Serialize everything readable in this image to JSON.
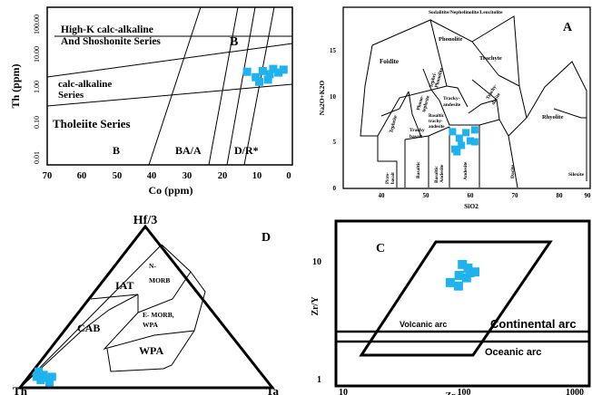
{
  "colors": {
    "sample": "#1fb2ee"
  },
  "chart_data": [
    {
      "panel_letter": "B",
      "type": "scatter",
      "xlabel": "Co (ppm)",
      "ylabel": "Th (ppm)",
      "xlim": [
        70,
        0
      ],
      "ylim": [
        0.01,
        100
      ],
      "yscale": "log",
      "x_ticks": [
        "70",
        "60",
        "50",
        "40",
        "30",
        "20",
        "10",
        "0"
      ],
      "y_ticks": [
        "0.01",
        "0.10",
        "1.00",
        "10.00",
        "100.00"
      ],
      "fields": [
        {
          "lines": [
            "High-K calc-alkaline",
            "And Shoshonite Series"
          ]
        },
        {
          "lines": [
            "calc-alkaline",
            "Series"
          ]
        },
        {
          "lines": [
            "Tholeiite Series"
          ]
        },
        {
          "lines": [
            "B"
          ]
        },
        {
          "lines": [
            "BA/A"
          ]
        },
        {
          "lines": [
            "D/R*"
          ]
        }
      ],
      "series": [
        {
          "points": [
            {
              "x": 12.5,
              "y": 3.8
            },
            {
              "x": 10,
              "y": 2.6
            },
            {
              "x": 8,
              "y": 4.0
            },
            {
              "x": 6,
              "y": 3.2
            },
            {
              "x": 5,
              "y": 4.6
            },
            {
              "x": 3.5,
              "y": 3.6
            },
            {
              "x": 2,
              "y": 4.4
            },
            {
              "x": 9,
              "y": 1.9
            },
            {
              "x": 6.5,
              "y": 2.2
            }
          ]
        }
      ]
    },
    {
      "panel_letter": "A",
      "type": "scatter",
      "xlabel": "SiO2",
      "ylabel": "Na2O+K2O",
      "xlim": [
        35,
        90
      ],
      "ylim": [
        0,
        20
      ],
      "x_ticks": [
        "40",
        "50",
        "60",
        "70",
        "80",
        "90"
      ],
      "y_ticks": [
        "0",
        "5",
        "10",
        "15"
      ],
      "fields": [
        {
          "lines": [
            "Sodalitite/Nephelinolite/Leucitolite"
          ]
        },
        {
          "lines": [
            "Foidite"
          ]
        },
        {
          "lines": [
            "Phonolite"
          ]
        },
        {
          "lines": [
            "Trachyte"
          ]
        },
        {
          "lines": [
            "Tephri-",
            "Phonolite"
          ]
        },
        {
          "lines": [
            "Phono-",
            "tephrite"
          ]
        },
        {
          "lines": [
            "Tracky-",
            "andesite"
          ]
        },
        {
          "lines": [
            "Trachy-",
            "dacite"
          ]
        },
        {
          "lines": [
            "Rhyolite"
          ]
        },
        {
          "lines": [
            "Tephrite"
          ]
        },
        {
          "lines": [
            "Basaltic",
            "trachy-",
            "andesite"
          ]
        },
        {
          "lines": [
            "Trachy",
            "basalt"
          ]
        },
        {
          "lines": [
            "Picro-",
            "basalt"
          ]
        },
        {
          "lines": [
            "Basaltic"
          ]
        },
        {
          "lines": [
            "Basaltic",
            "Andesite"
          ]
        },
        {
          "lines": [
            "Andesite"
          ]
        },
        {
          "lines": [
            "Dacite"
          ]
        },
        {
          "lines": [
            "Silexite"
          ]
        }
      ],
      "series": [
        {
          "points": [
            {
              "x": 56,
              "y": 6.1
            },
            {
              "x": 57.5,
              "y": 5.4
            },
            {
              "x": 59,
              "y": 6.0
            },
            {
              "x": 61,
              "y": 6.3
            },
            {
              "x": 60,
              "y": 5.1
            },
            {
              "x": 58,
              "y": 4.6
            },
            {
              "x": 56.5,
              "y": 4.2
            },
            {
              "x": 61,
              "y": 5.0
            },
            {
              "x": 57,
              "y": 3.9
            }
          ]
        }
      ]
    },
    {
      "panel_letter": "D",
      "type": "scatter",
      "ternary": true,
      "apex_labels": [
        "Hf/3",
        "Th",
        "Ta"
      ],
      "fields": [
        {
          "lines": [
            "IAT"
          ]
        },
        {
          "lines": [
            "N-",
            "MORB"
          ]
        },
        {
          "lines": [
            "CAB"
          ]
        },
        {
          "lines": [
            "E- MORB,",
            "WPA"
          ]
        },
        {
          "lines": [
            "WPA"
          ]
        }
      ],
      "series": [
        {
          "points": [
            {
              "x": 0.074,
              "y": 0.1
            },
            {
              "x": 0.094,
              "y": 0.08
            },
            {
              "x": 0.066,
              "y": 0.068
            },
            {
              "x": 0.102,
              "y": 0.062
            },
            {
              "x": 0.127,
              "y": 0.068
            },
            {
              "x": 0.082,
              "y": 0.047
            },
            {
              "x": 0.117,
              "y": 0.033
            }
          ]
        }
      ]
    },
    {
      "panel_letter": "C",
      "type": "scatter",
      "xlabel": "Zr",
      "ylabel": "Zr/Y",
      "xscale": "log",
      "yscale": "log",
      "xlim": [
        10,
        1000
      ],
      "ylim": [
        1,
        20
      ],
      "x_ticks": [
        "10",
        "100",
        "1000"
      ],
      "y_ticks": [
        "1",
        "10"
      ],
      "fields": [
        {
          "lines": [
            "Volcanic arc"
          ]
        },
        {
          "lines": [
            "Continental arc"
          ]
        },
        {
          "lines": [
            "Oceanic arc"
          ]
        }
      ],
      "series": [
        {
          "points": [
            {
              "x": 97,
              "y": 8.7
            },
            {
              "x": 108,
              "y": 8.1
            },
            {
              "x": 123,
              "y": 7.5
            },
            {
              "x": 91,
              "y": 7.0
            },
            {
              "x": 105,
              "y": 6.7
            },
            {
              "x": 77,
              "y": 6.1
            },
            {
              "x": 90,
              "y": 5.7
            },
            {
              "x": 112,
              "y": 7.4
            }
          ]
        }
      ]
    }
  ]
}
